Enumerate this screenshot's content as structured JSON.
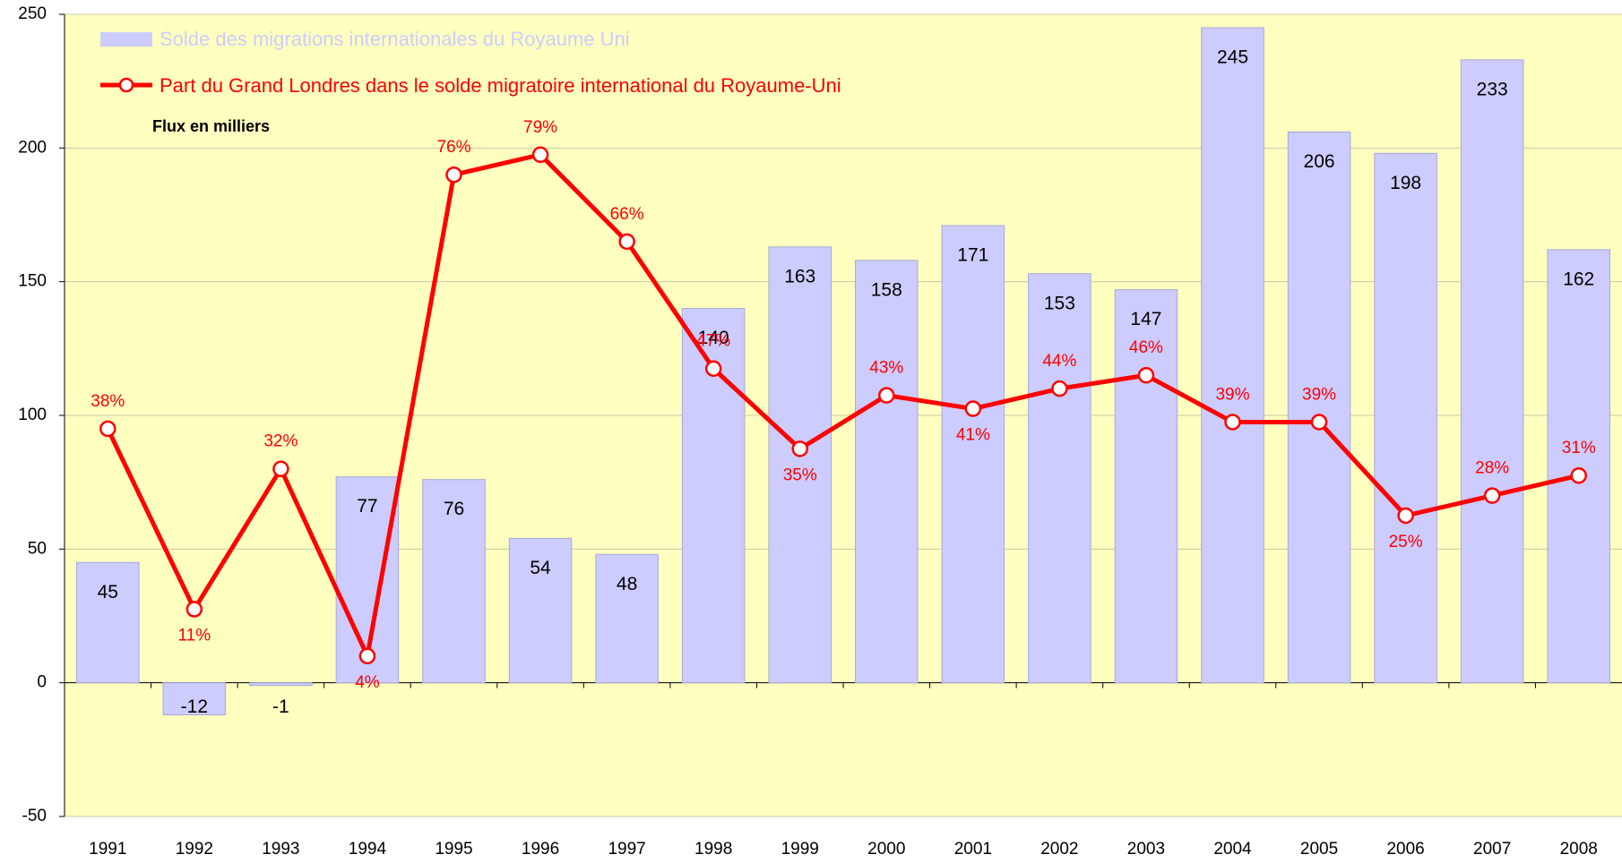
{
  "chart_data": {
    "type": "bar-line",
    "annotation": "Flux en milliers",
    "categories": [
      "1991",
      "1992",
      "1993",
      "1994",
      "1995",
      "1996",
      "1997",
      "1998",
      "1999",
      "2000",
      "2001",
      "2002",
      "2003",
      "2004",
      "2005",
      "2006",
      "2007",
      "2008"
    ],
    "series": [
      {
        "name": "Solde des migrations internationales du Royaume Uni",
        "type": "bar",
        "color": "#ccccff",
        "values": [
          45,
          -12,
          -1,
          77,
          76,
          54,
          48,
          140,
          163,
          158,
          171,
          153,
          147,
          245,
          206,
          198,
          233,
          162
        ]
      },
      {
        "name": "Part du Grand Londres dans le solde migratoire international du Royaume-Uni",
        "type": "line",
        "color": "#ff0000",
        "axis": "y2",
        "values": [
          38,
          11,
          32,
          4,
          76,
          79,
          66,
          47,
          35,
          43,
          41,
          44,
          46,
          39,
          39,
          25,
          28,
          31
        ],
        "value_labels": [
          "38%",
          "11%",
          "32%",
          "4%",
          "76%",
          "79%",
          "66%",
          "47%",
          "35%",
          "43%",
          "41%",
          "44%",
          "46%",
          "39%",
          "39%",
          "25%",
          "28%",
          "31%"
        ]
      }
    ],
    "ylim": [
      -50,
      250
    ],
    "yticks": [
      -50,
      0,
      50,
      100,
      150,
      200,
      250
    ],
    "y2lim": [
      -20,
      100
    ],
    "grid": true
  }
}
